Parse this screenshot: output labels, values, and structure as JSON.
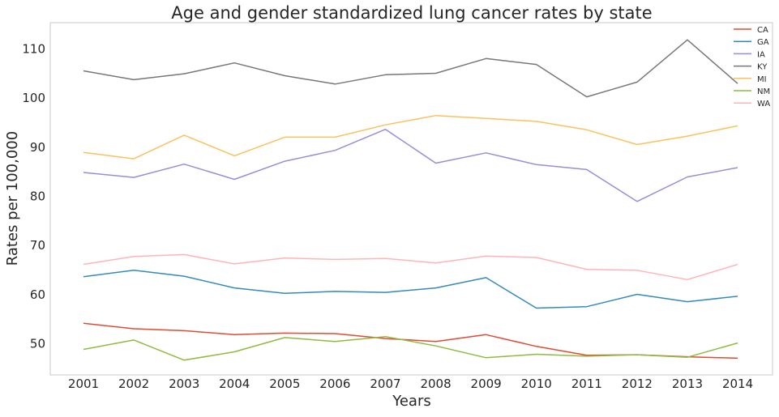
{
  "chart_data": {
    "type": "line",
    "title": "Age and gender standardized lung cancer rates by state",
    "xlabel": "Years",
    "ylabel": "Rates per 100,000",
    "categories": [
      "2001",
      "2002",
      "2003",
      "2004",
      "2005",
      "2006",
      "2007",
      "2008",
      "2009",
      "2010",
      "2011",
      "2012",
      "2013",
      "2014"
    ],
    "ylim": [
      43.5,
      115.2
    ],
    "yticks": [
      50,
      60,
      70,
      80,
      90,
      100,
      110
    ],
    "grid": false,
    "legend_position": "top-right",
    "series": [
      {
        "name": "CA",
        "color": "#e24a33",
        "values": [
          54.0,
          52.9,
          52.5,
          51.7,
          52.0,
          51.9,
          50.9,
          50.3,
          51.7,
          49.3,
          47.5,
          47.6,
          47.2,
          46.9
        ]
      },
      {
        "name": "GA",
        "color": "#348abd",
        "values": [
          63.5,
          64.8,
          63.6,
          61.2,
          60.1,
          60.5,
          60.3,
          61.2,
          63.3,
          57.1,
          57.4,
          59.9,
          58.4,
          59.5
        ]
      },
      {
        "name": "IA",
        "color": "#988ed5",
        "values": [
          84.7,
          83.7,
          86.4,
          83.3,
          87.0,
          89.2,
          93.5,
          86.6,
          88.7,
          86.3,
          85.3,
          78.8,
          83.8,
          85.7
        ]
      },
      {
        "name": "KY",
        "color": "#777777",
        "values": [
          105.4,
          103.6,
          104.8,
          107.0,
          104.4,
          102.7,
          104.6,
          104.9,
          107.9,
          106.7,
          100.1,
          103.1,
          111.7,
          102.8
        ]
      },
      {
        "name": "MI",
        "color": "#fbc15e",
        "values": [
          88.8,
          87.5,
          92.3,
          88.1,
          91.9,
          91.9,
          94.4,
          96.3,
          95.7,
          95.1,
          93.4,
          90.4,
          92.1,
          94.2
        ]
      },
      {
        "name": "NM",
        "color": "#8eba42",
        "values": [
          48.7,
          50.6,
          46.5,
          48.2,
          51.1,
          50.3,
          51.3,
          49.4,
          47.0,
          47.7,
          47.3,
          47.6,
          47.1,
          50.0
        ]
      },
      {
        "name": "WA",
        "color": "#ffb5b8",
        "values": [
          66.0,
          67.6,
          68.0,
          66.1,
          67.3,
          67.0,
          67.2,
          66.3,
          67.7,
          67.4,
          65.0,
          64.8,
          62.9,
          66.0
        ]
      }
    ]
  }
}
